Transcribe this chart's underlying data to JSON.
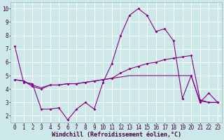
{
  "xlabel": "Windchill (Refroidissement éolien,°C)",
  "bg_color": "#cce8e8",
  "grid_color": "#ffffff",
  "line_color": "#880088",
  "x_ticks": [
    0,
    1,
    2,
    3,
    4,
    5,
    6,
    7,
    8,
    9,
    10,
    11,
    12,
    13,
    14,
    15,
    16,
    17,
    18,
    19,
    20,
    21,
    22,
    23
  ],
  "y_ticks": [
    2,
    3,
    4,
    5,
    6,
    7,
    8,
    9,
    10
  ],
  "ylim": [
    1.5,
    10.5
  ],
  "xlim": [
    -0.5,
    23.5
  ],
  "series1_x": [
    0,
    1,
    2,
    3,
    4,
    5,
    6,
    7,
    8,
    9,
    10,
    11,
    12,
    13,
    14,
    15,
    16,
    17,
    18,
    19,
    20,
    21,
    22,
    23
  ],
  "series1_y": [
    7.2,
    4.5,
    4.4,
    2.5,
    2.5,
    2.6,
    1.7,
    2.5,
    3.0,
    2.5,
    4.5,
    5.9,
    8.0,
    9.5,
    10.0,
    9.5,
    8.3,
    8.5,
    7.6,
    3.3,
    5.0,
    3.0,
    3.7,
    3.0
  ],
  "series2_x": [
    0,
    1,
    2,
    3,
    4,
    5,
    6,
    7,
    8,
    9,
    10,
    11,
    12,
    13,
    14,
    15,
    16,
    17,
    18,
    19,
    20,
    21,
    22,
    23
  ],
  "series2_y": [
    4.7,
    4.6,
    4.2,
    4.0,
    4.3,
    4.3,
    4.4,
    4.4,
    4.5,
    4.6,
    4.7,
    4.8,
    5.2,
    5.5,
    5.7,
    5.9,
    6.0,
    6.2,
    6.3,
    6.4,
    6.5,
    3.2,
    3.0,
    3.0
  ],
  "series3_x": [
    0,
    1,
    2,
    3,
    4,
    5,
    6,
    7,
    8,
    9,
    10,
    11,
    12,
    13,
    14,
    15,
    16,
    17,
    18,
    19,
    20,
    21,
    22,
    23
  ],
  "series3_y": [
    4.7,
    4.6,
    4.3,
    4.1,
    4.3,
    4.3,
    4.4,
    4.4,
    4.5,
    4.6,
    4.7,
    4.8,
    4.9,
    5.0,
    5.0,
    5.0,
    5.0,
    5.0,
    5.0,
    5.0,
    5.0,
    3.1,
    3.0,
    3.0
  ],
  "tick_fontsize": 5.5,
  "xlabel_fontsize": 6.0
}
